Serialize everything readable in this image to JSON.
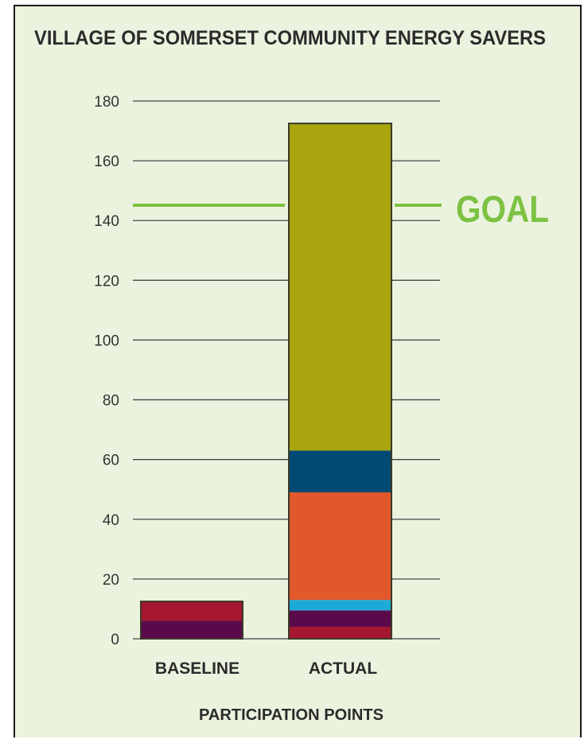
{
  "chart_data": {
    "type": "bar",
    "stacked": true,
    "title": "VILLAGE OF SOMERSET COMMUNITY ENERGY SAVERS",
    "xlabel": "PARTICIPATION POINTS",
    "ylabel": "",
    "categories": [
      "BASELINE",
      "ACTUAL"
    ],
    "ylim": [
      0,
      180
    ],
    "yticks": [
      0,
      20,
      40,
      60,
      80,
      100,
      120,
      140,
      160,
      180
    ],
    "grid": true,
    "segments": [
      {
        "category": "BASELINE",
        "start": 0,
        "end": 6,
        "color": "#5a0a4a"
      },
      {
        "category": "BASELINE",
        "start": 6,
        "end": 12.5,
        "color": "#a5172e"
      },
      {
        "category": "ACTUAL",
        "start": 0,
        "end": 4,
        "color": "#a5172e"
      },
      {
        "category": "ACTUAL",
        "start": 4,
        "end": 9.5,
        "color": "#5a0a4a"
      },
      {
        "category": "ACTUAL",
        "start": 9.5,
        "end": 13,
        "color": "#1eaad6"
      },
      {
        "category": "ACTUAL",
        "start": 13,
        "end": 49,
        "color": "#e2582b"
      },
      {
        "category": "ACTUAL",
        "start": 49,
        "end": 63,
        "color": "#004a73"
      },
      {
        "category": "ACTUAL",
        "start": 63,
        "end": 172.5,
        "color": "#a8a50e"
      }
    ],
    "goal": {
      "label": "GOAL",
      "value": 145,
      "color": "#7dc242"
    }
  }
}
